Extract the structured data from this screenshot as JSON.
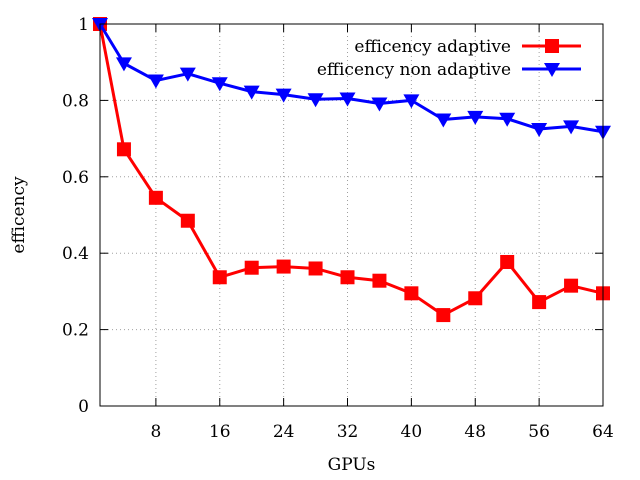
{
  "chart_data": {
    "type": "line",
    "title": "",
    "xlabel": "GPUs",
    "ylabel": "efficency",
    "xlim": [
      1,
      64
    ],
    "ylim": [
      0,
      1
    ],
    "x_ticks": [
      8,
      16,
      24,
      32,
      40,
      48,
      56,
      64
    ],
    "y_ticks": [
      0,
      0.2,
      0.4,
      0.6,
      0.8,
      1
    ],
    "y_tick_labels": [
      "0",
      "0.2",
      "0.4",
      "0.6",
      "0.8",
      "1"
    ],
    "grid": true,
    "legend_position": "top-right",
    "x": [
      1,
      4,
      8,
      12,
      16,
      20,
      24,
      28,
      32,
      36,
      40,
      44,
      48,
      52,
      56,
      60,
      64
    ],
    "series": [
      {
        "name": "efficency adaptive",
        "color": "#ff0000",
        "marker": "square",
        "values": [
          1.0,
          0.672,
          0.545,
          0.485,
          0.337,
          0.362,
          0.365,
          0.36,
          0.337,
          0.328,
          0.295,
          0.238,
          0.282,
          0.377,
          0.272,
          0.315,
          0.295
        ]
      },
      {
        "name": "efficency non adaptive",
        "color": "#0000ff",
        "marker": "triangle-down",
        "values": [
          1.0,
          0.897,
          0.852,
          0.87,
          0.845,
          0.823,
          0.815,
          0.803,
          0.805,
          0.792,
          0.8,
          0.75,
          0.757,
          0.752,
          0.725,
          0.732,
          0.718
        ]
      }
    ]
  }
}
